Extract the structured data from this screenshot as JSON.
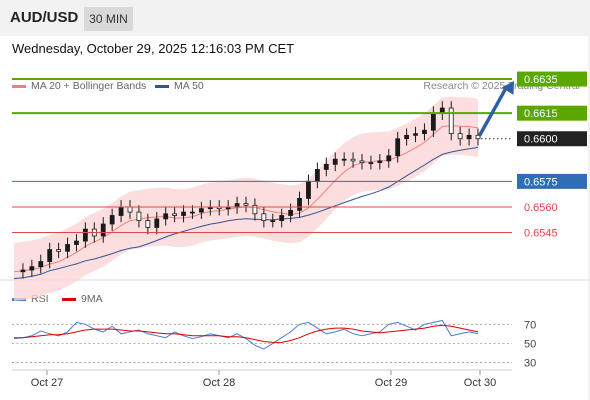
{
  "header": {
    "symbol": "AUD/USD",
    "timeframe": "30 MIN"
  },
  "datetime": "Wednesday, October 29, 2025 12:16:03 PM CET",
  "legend": {
    "items": [
      {
        "label": "MA 20 + Bollinger Bands",
        "color": "#f08080"
      },
      {
        "label": "MA 50",
        "color": "#2f5597"
      }
    ],
    "credit": "Research © 2025 Trading Central"
  },
  "rsi_legend": {
    "items": [
      {
        "label": "RSI",
        "color": "#4a7fd4"
      },
      {
        "label": "9MA",
        "color": "#e00000"
      }
    ]
  },
  "colors": {
    "resistance": "#5aa700",
    "pivot": "#2f6db5",
    "support": "#e04848",
    "current": "#222222",
    "arrow": "#2f5ea8",
    "up_candle": "#1a1a1a",
    "band_fill": "#fbd6d6"
  },
  "chart_data": [
    {
      "type": "candlestick",
      "instrument": "AUD/USD",
      "timeframe": "30 MIN",
      "x_ticks": [
        "Oct 27",
        "Oct 28",
        "Oct 29",
        "Oct 30"
      ],
      "ylim": [
        0.6516,
        0.6645
      ],
      "price_levels": [
        {
          "label": "0.6635",
          "value": 0.6635,
          "role": "resistance"
        },
        {
          "label": "0.6615",
          "value": 0.6615,
          "role": "resistance"
        },
        {
          "label": "0.6600",
          "value": 0.66,
          "role": "current"
        },
        {
          "label": "0.6575",
          "value": 0.6575,
          "role": "pivot"
        },
        {
          "label": "0.6560",
          "value": 0.656,
          "role": "support"
        },
        {
          "label": "0.6545",
          "value": 0.6545,
          "role": "support"
        }
      ],
      "close_path": [
        0.6522,
        0.6523,
        0.6525,
        0.6528,
        0.6535,
        0.6534,
        0.6538,
        0.654,
        0.6547,
        0.6543,
        0.655,
        0.6555,
        0.656,
        0.6557,
        0.6552,
        0.6548,
        0.6553,
        0.6556,
        0.6555,
        0.6557,
        0.6557,
        0.6559,
        0.656,
        0.6559,
        0.656,
        0.6562,
        0.6561,
        0.6556,
        0.6552,
        0.6552,
        0.6555,
        0.6558,
        0.6565,
        0.6575,
        0.6582,
        0.6585,
        0.6588,
        0.6588,
        0.6587,
        0.6586,
        0.6586,
        0.6587,
        0.659,
        0.66,
        0.6602,
        0.6603,
        0.6605,
        0.6615,
        0.6618,
        0.6603,
        0.66,
        0.6602,
        0.66
      ],
      "forecast": {
        "from": 0.66,
        "to": 0.6635,
        "direction": "up"
      }
    },
    {
      "type": "line",
      "title": "RSI",
      "yticks": [
        70,
        50,
        30
      ],
      "ylim": [
        20,
        85
      ],
      "series": [
        {
          "name": "RSI",
          "values": [
            55,
            56,
            58,
            63,
            60,
            58,
            62,
            72,
            70,
            65,
            62,
            68,
            60,
            62,
            64,
            60,
            58,
            56,
            62,
            58,
            55,
            57,
            60,
            58,
            56,
            60,
            55,
            48,
            44,
            50,
            56,
            62,
            70,
            72,
            66,
            60,
            62,
            65,
            60,
            58,
            60,
            62,
            70,
            72,
            68,
            64,
            70,
            72,
            74,
            58,
            60,
            62,
            60
          ]
        },
        {
          "name": "9MA",
          "values": [
            56,
            56,
            57,
            58,
            59,
            59,
            60,
            62,
            64,
            65,
            65,
            65,
            64,
            63,
            63,
            62,
            61,
            60,
            60,
            59,
            58,
            58,
            58,
            58,
            57,
            57,
            56,
            54,
            52,
            51,
            51,
            53,
            56,
            60,
            63,
            65,
            66,
            66,
            65,
            63,
            62,
            61,
            62,
            63,
            64,
            65,
            66,
            68,
            69,
            68,
            66,
            64,
            62
          ]
        }
      ]
    }
  ]
}
